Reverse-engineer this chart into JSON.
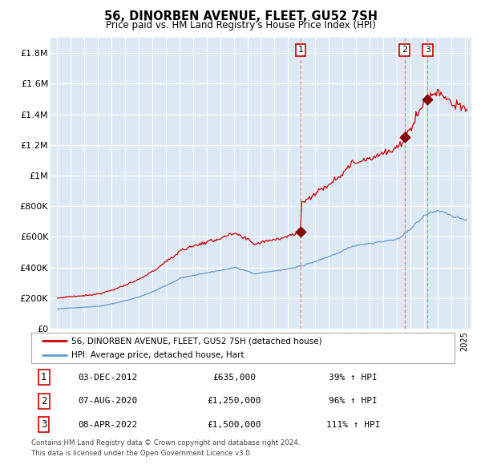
{
  "title": "56, DINORBEN AVENUE, FLEET, GU52 7SH",
  "subtitle": "Price paid vs. HM Land Registry's House Price Index (HPI)",
  "ylim": [
    0,
    1900000
  ],
  "yticks": [
    0,
    200000,
    400000,
    600000,
    800000,
    1000000,
    1200000,
    1400000,
    1600000,
    1800000
  ],
  "ytick_labels": [
    "£0",
    "£200K",
    "£400K",
    "£600K",
    "£800K",
    "£1M",
    "£1.2M",
    "£1.4M",
    "£1.6M",
    "£1.8M"
  ],
  "plot_bg_color": "#dce9f5",
  "grid_color": "#ffffff",
  "red_line_color": "#cc0000",
  "blue_line_color": "#6699cc",
  "sale_marker_color": "#880000",
  "vline_color": "#dd8888",
  "anno_box_color": "#cc0000",
  "sale1_date_num": 2012.92,
  "sale1_price": 635000,
  "sale2_date_num": 2020.58,
  "sale2_price": 1250000,
  "sale3_date_num": 2022.27,
  "sale3_price": 1500000,
  "legend_red_label": "56, DINORBEN AVENUE, FLEET, GU52 7SH (detached house)",
  "legend_blue_label": "HPI: Average price, detached house, Hart",
  "table_rows": [
    {
      "num": "1",
      "date": "03-DEC-2012",
      "price": "£635,000",
      "change": "39% ↑ HPI"
    },
    {
      "num": "2",
      "date": "07-AUG-2020",
      "price": "£1,250,000",
      "change": "96% ↑ HPI"
    },
    {
      "num": "3",
      "date": "08-APR-2022",
      "price": "£1,500,000",
      "change": "111% ↑ HPI"
    }
  ],
  "footnote1": "Contains HM Land Registry data © Crown copyright and database right 2024.",
  "footnote2": "This data is licensed under the Open Government Licence v3.0."
}
